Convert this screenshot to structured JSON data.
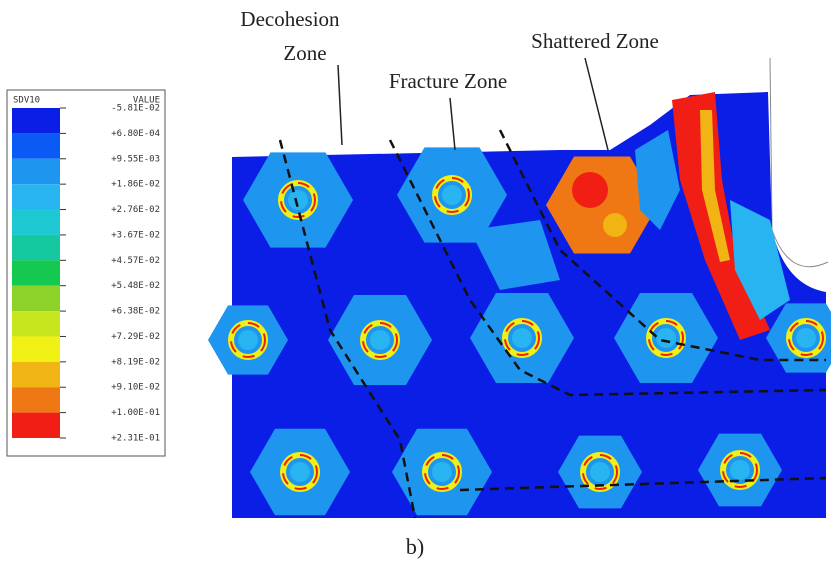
{
  "annotations": {
    "decohesion_1": "Decohesion",
    "decohesion_2": "Zone",
    "fracture": "Fracture Zone",
    "shattered": "Shattered Zone"
  },
  "caption": "b)",
  "legend": {
    "header_left": "SDV10",
    "header_right": "VALUE",
    "labels": [
      "-5.81E-02",
      "+6.80E-04",
      "+9.55E-03",
      "+1.86E-02",
      "+2.76E-02",
      "+3.67E-02",
      "+4.57E-02",
      "+5.48E-02",
      "+6.38E-02",
      "+7.29E-02",
      "+8.19E-02",
      "+9.10E-02",
      "+1.00E-01",
      "+2.31E-01"
    ],
    "colors": [
      "#0a1ee6",
      "#0a5af5",
      "#1e96f0",
      "#28b4f0",
      "#1ec8d2",
      "#14c8a0",
      "#14c850",
      "#8cd228",
      "#c8e61e",
      "#f0f014",
      "#f0b414",
      "#f07814",
      "#f01e14"
    ]
  }
}
